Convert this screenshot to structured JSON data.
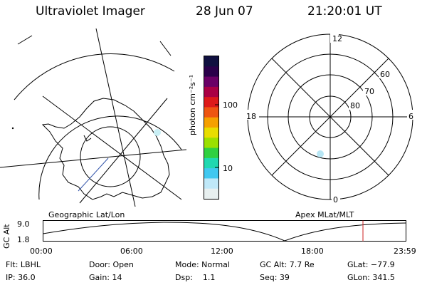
{
  "header": {
    "title": "Ultraviolet Imager",
    "date": "28 Jun 07",
    "time": "21:20:01 UT"
  },
  "colorbar": {
    "label": "photon cm⁻²s⁻¹",
    "ticks": [
      "100",
      "10"
    ],
    "colors": [
      "#101040",
      "#2a004a",
      "#6a0066",
      "#aa0044",
      "#dd1a1a",
      "#ee5511",
      "#f5a000",
      "#e8dd00",
      "#9be000",
      "#30d040",
      "#20d8b0",
      "#40c8f0",
      "#bfe8f8",
      "#e8f0f0"
    ]
  },
  "polar_plot": {
    "mlt_labels": {
      "top": "12",
      "left": "18",
      "right": "6",
      "bottom": "0"
    },
    "lat_labels": [
      "60",
      "70",
      "80"
    ]
  },
  "timeline": {
    "left_label": "Geographic Lat/Lon",
    "right_label": "Apex MLat/MLT",
    "ylabel": "GC Alt",
    "yticks": [
      "9.0",
      "1.8"
    ],
    "xticks": [
      "00:00",
      "06:00",
      "12:00",
      "18:00",
      "23:59"
    ],
    "marker_color": "#cc2222"
  },
  "status": {
    "row1": {
      "flt": "Flt: LBHL",
      "door": "Door: Open",
      "mode": "Mode: Normal",
      "gcalt": "GC Alt: 7.7 Re",
      "glat": "GLat: −77.9"
    },
    "row2": {
      "ip": "IP: 36.0",
      "gain": "Gain: 14",
      "dsp": "Dsp:    1.1",
      "seq": "Seq: 39",
      "glon": "GLon: 341.5"
    }
  }
}
